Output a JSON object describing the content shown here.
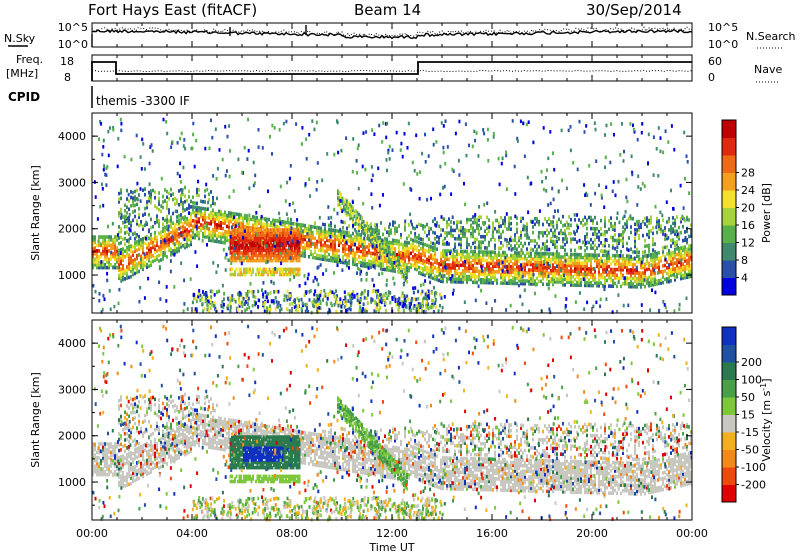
{
  "header": {
    "title": "Fort Hays East (fitACF)",
    "beam": "Beam 14",
    "date": "30/Sep/2014"
  },
  "noise_panel": {
    "left_label": "N.Sky",
    "left_ticks": [
      "10^5",
      "10^0"
    ],
    "right_label": "N.Search",
    "right_ticks": [
      "10^5",
      "10^0"
    ]
  },
  "freq_panel": {
    "left_label_line1": "Freq.",
    "left_label_line2": "[MHz]",
    "left_ticks": [
      "18",
      "8"
    ],
    "right_label": "Nave",
    "right_ticks": [
      "60",
      "0"
    ]
  },
  "cpid_panel": {
    "label": "CPID",
    "mode_text": "themis -3300 IF"
  },
  "chart_data": [
    {
      "type": "heatmap",
      "name": "Power",
      "ylabel": "Slant Range [km]",
      "yticks": [
        "4000",
        "3000",
        "2000",
        "1000"
      ],
      "ylim": [
        180,
        4500
      ],
      "colorbar_label": "Power [dB]",
      "colorbar_ticks": [
        "28",
        "24",
        "20",
        "16",
        "12",
        "8",
        "4"
      ],
      "colorbar_colors": [
        "#0000e0",
        "#2a4fa8",
        "#3f8a6c",
        "#58b04a",
        "#a6d23a",
        "#f2e02a",
        "#f2a01e",
        "#ee6a14",
        "#e02a10",
        "#c00000"
      ]
    },
    {
      "type": "heatmap",
      "name": "Velocity",
      "ylabel": "Slant Range [km]",
      "yticks": [
        "4000",
        "3000",
        "2000",
        "1000"
      ],
      "ylim": [
        180,
        4500
      ],
      "colorbar_label": "Velocity [m s",
      "colorbar_label_sup": "-1",
      "colorbar_label_end": "]",
      "colorbar_ticks": [
        "200",
        "100",
        "50",
        "15",
        "-15",
        "-50",
        "-100",
        "-200"
      ],
      "colorbar_colors": [
        "#e00000",
        "#ee4a10",
        "#f28a1a",
        "#f2b01e",
        "#c8c8c0",
        "#7dc83a",
        "#48a048",
        "#2a7a50",
        "#2050a0",
        "#1030c0"
      ]
    }
  ],
  "x_axis": {
    "ticks": [
      "00:00",
      "04:00",
      "08:00",
      "12:00",
      "16:00",
      "20:00",
      "00:00"
    ],
    "label": "Time UT"
  }
}
